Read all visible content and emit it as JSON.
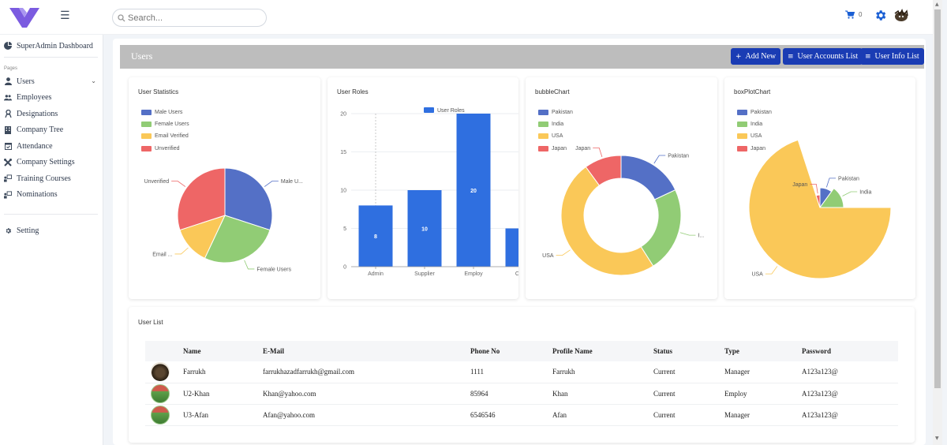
{
  "topbar": {
    "search_placeholder": "Search...",
    "cart_count": "0"
  },
  "sidebar": {
    "dashboard": "SuperAdmin Dashboard",
    "section_label": "Pages",
    "items": [
      {
        "label": "Users",
        "icon": "user-icon"
      },
      {
        "label": "Employees",
        "icon": "employees-icon"
      },
      {
        "label": "Designations",
        "icon": "designation-icon"
      },
      {
        "label": "Company Tree",
        "icon": "building-icon"
      },
      {
        "label": "Attendance",
        "icon": "calendar-icon"
      },
      {
        "label": "Company Settings",
        "icon": "tools-icon"
      },
      {
        "label": "Training Courses",
        "icon": "training-icon"
      },
      {
        "label": "Nominations",
        "icon": "nomination-icon"
      }
    ],
    "setting": "Setting"
  },
  "header": {
    "title": "Users",
    "add_new": "Add New",
    "accounts_list": "User Accounts List",
    "info_list": "User Info List"
  },
  "cards": {
    "stats_title": "User Statistics",
    "roles_title": "User Roles",
    "bubble_title": "bubbleChart",
    "box_title": "boxPlotChart"
  },
  "colors": {
    "blue": "#5470c6",
    "green": "#91cc75",
    "yellow": "#fac858",
    "red": "#ee6666",
    "bar": "#2f6fe0",
    "accent": "#1a3cb4"
  },
  "chart_data": [
    {
      "type": "pie",
      "title": "User Statistics",
      "legend": [
        "Male Users",
        "Female Users",
        "Email Verified",
        "Unverified"
      ],
      "slice_labels": [
        "Male U...",
        "Female Users",
        "Email ...",
        "Unverified"
      ],
      "values": [
        30,
        27,
        13,
        30
      ]
    },
    {
      "type": "bar",
      "title": "User Roles",
      "series_name": "User Roles",
      "categories": [
        "Admin",
        "Supplier",
        "Employ",
        "Custo"
      ],
      "values": [
        8,
        10,
        20,
        5
      ],
      "ylim": [
        0,
        20
      ],
      "yticks": [
        0,
        5,
        10,
        15,
        20
      ]
    },
    {
      "type": "pie",
      "title": "bubbleChart",
      "legend": [
        "Pakistan",
        "India",
        "USA",
        "Japan"
      ],
      "slice_labels": [
        "Pakistan",
        "I...",
        "USA",
        "Japan"
      ],
      "values": [
        18,
        23,
        49,
        10
      ]
    },
    {
      "type": "pie",
      "title": "boxPlotChart",
      "legend": [
        "Pakistan",
        "India",
        "USA",
        "Japan"
      ],
      "slice_labels": [
        "Pakistan",
        "India",
        "USA",
        "Japan"
      ],
      "values": [
        10,
        15,
        70,
        5
      ],
      "radii": [
        25,
        30,
        90,
        16
      ]
    }
  ],
  "userlist": {
    "title": "User List",
    "headers": [
      "Name",
      "E-Mail",
      "Phone No",
      "Profile Name",
      "Status",
      "Type",
      "Password"
    ],
    "rows": [
      {
        "name": "Farrukh",
        "email": "farrukhazadfarrukh@gmail.com",
        "phone": "1111",
        "profile": "Farrukh",
        "status": "Current",
        "type": "Manager",
        "password": "A123a123@"
      },
      {
        "name": "U2-Khan",
        "email": "Khan@yahoo.com",
        "phone": "85964",
        "profile": "Khan",
        "status": "Current",
        "type": "Employ",
        "password": "A123a123@"
      },
      {
        "name": "U3-Afan",
        "email": "Afan@yahoo.com",
        "phone": "6546546",
        "profile": "Afan",
        "status": "Current",
        "type": "Manager",
        "password": "A123a123@"
      }
    ]
  }
}
